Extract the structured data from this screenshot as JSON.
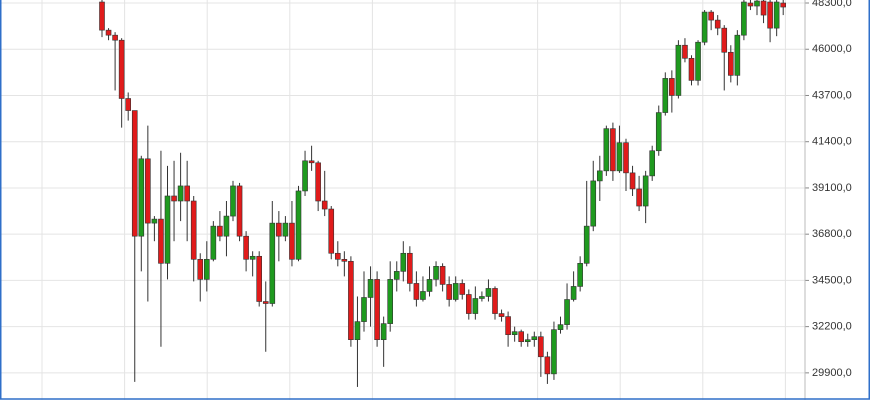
{
  "chart_data": {
    "type": "candlestick",
    "open": [
      48350,
      46950,
      46700,
      46450,
      43550,
      42950,
      36700,
      40550,
      37350,
      37550,
      35350,
      38700,
      38450,
      39200,
      38450,
      35550,
      34550,
      35550,
      37200,
      36700,
      37700,
      39200,
      36700,
      35550,
      35700,
      33450,
      33350,
      37350,
      36700,
      37350,
      35550,
      38950,
      40450,
      40350,
      38450,
      38050,
      35850,
      35550,
      35450,
      31550,
      32450,
      33650,
      34550,
      31550,
      32350,
      34550,
      34950,
      35850,
      34350,
      33550,
      33950,
      34550,
      35200,
      34300,
      33550,
      34350,
      33800,
      32850,
      33600,
      33700,
      34100,
      32850,
      32700,
      31800,
      31950,
      31450,
      31550,
      31700,
      30700,
      29850,
      32050,
      32300,
      33550,
      34200,
      35350,
      37200,
      39450,
      39950,
      42050,
      39950,
      41350,
      39850,
      39050,
      38200,
      39700,
      40950,
      42850,
      44550,
      43700,
      46200,
      45550,
      44450,
      46350,
      47850,
      47450,
      47050,
      45850,
      44700,
      46700,
      48300,
      48150,
      48400,
      48350,
      47050,
      48300
    ],
    "high": [
      48450,
      47050,
      46850,
      46550,
      43850,
      42950,
      40700,
      42200,
      37700,
      40950,
      40200,
      40450,
      40850,
      40450,
      38700,
      35850,
      36450,
      37450,
      37950,
      38450,
      39450,
      39350,
      36950,
      35950,
      35950,
      34450,
      38450,
      37950,
      37700,
      38450,
      39200,
      40950,
      41200,
      40450,
      39950,
      38200,
      36450,
      35950,
      35700,
      33700,
      34950,
      35200,
      34950,
      32700,
      35450,
      35450,
      36450,
      36200,
      34950,
      34700,
      35200,
      35450,
      35350,
      34700,
      34700,
      34550,
      34050,
      34200,
      33950,
      34550,
      34200,
      33050,
      32950,
      32200,
      32050,
      31850,
      31950,
      31950,
      30950,
      32450,
      32700,
      34350,
      34950,
      35700,
      39450,
      40450,
      40700,
      42200,
      42350,
      42200,
      41550,
      40200,
      39700,
      39950,
      41200,
      43200,
      44850,
      44950,
      46450,
      46550,
      45700,
      46450,
      47950,
      47950,
      47700,
      47200,
      46200,
      46950,
      48450,
      48450,
      48450,
      48450,
      48450,
      48450,
      48450
    ],
    "low": [
      46600,
      46450,
      43950,
      42100,
      42450,
      29450,
      34950,
      33450,
      36450,
      31200,
      34550,
      36450,
      37450,
      36450,
      34450,
      33450,
      33950,
      35450,
      36450,
      35700,
      37450,
      36450,
      34950,
      34700,
      33200,
      30950,
      33200,
      35450,
      36450,
      35200,
      35450,
      38700,
      39950,
      37950,
      37700,
      35550,
      35200,
      34700,
      31200,
      29200,
      31950,
      32200,
      31200,
      30200,
      31950,
      33950,
      34450,
      33950,
      33200,
      33450,
      33700,
      34200,
      33950,
      33200,
      33450,
      33550,
      32550,
      32550,
      33450,
      33450,
      32550,
      32450,
      31200,
      31450,
      31200,
      31200,
      31200,
      29700,
      29350,
      29550,
      31850,
      32050,
      33450,
      33950,
      35200,
      36950,
      38450,
      39700,
      39450,
      39850,
      38950,
      38700,
      37950,
      37350,
      39450,
      40700,
      42700,
      42850,
      43550,
      45350,
      44200,
      44200,
      46200,
      46950,
      46700,
      43950,
      44350,
      44200,
      46450,
      47950,
      47700,
      47300,
      46350,
      46650,
      47700
    ],
    "close": [
      46950,
      46700,
      46450,
      43550,
      42950,
      36700,
      40550,
      37350,
      37550,
      35350,
      38700,
      38450,
      39200,
      38450,
      35550,
      34550,
      35550,
      37200,
      36700,
      37700,
      39200,
      36700,
      35550,
      35700,
      33450,
      33350,
      37350,
      36700,
      37350,
      35550,
      38950,
      40450,
      40350,
      38450,
      38050,
      35850,
      35550,
      35450,
      31550,
      32450,
      33650,
      34550,
      31550,
      32350,
      34550,
      34950,
      35850,
      34350,
      33550,
      33950,
      34550,
      35200,
      34300,
      33550,
      34350,
      33800,
      32850,
      33600,
      33700,
      34100,
      32850,
      32700,
      31800,
      31950,
      31450,
      31550,
      31700,
      30700,
      29850,
      32050,
      32300,
      33550,
      34200,
      35350,
      37200,
      39450,
      39950,
      42050,
      39950,
      41350,
      39850,
      39050,
      38200,
      39700,
      40950,
      42850,
      44550,
      43700,
      46200,
      45550,
      44450,
      46350,
      47850,
      47450,
      47050,
      45850,
      44700,
      46700,
      48350,
      48150,
      48400,
      47700,
      47050,
      48350,
      48100
    ],
    "up_color": "#1f9a1f",
    "down_color": "#e01b1b",
    "ylim": [
      28550,
      48450
    ],
    "yticks": [
      {
        "value": 29900,
        "label": "29900,0"
      },
      {
        "value": 32200,
        "label": "32200,0"
      },
      {
        "value": 34500,
        "label": "34500,0"
      },
      {
        "value": 36800,
        "label": "36800,0"
      },
      {
        "value": 39100,
        "label": "39100,0"
      },
      {
        "value": 41400,
        "label": "41400,0"
      },
      {
        "value": 43700,
        "label": "43700,0"
      },
      {
        "value": 46000,
        "label": "46000,0"
      },
      {
        "value": 48300,
        "label": "48300,0"
      }
    ],
    "grid": true
  }
}
